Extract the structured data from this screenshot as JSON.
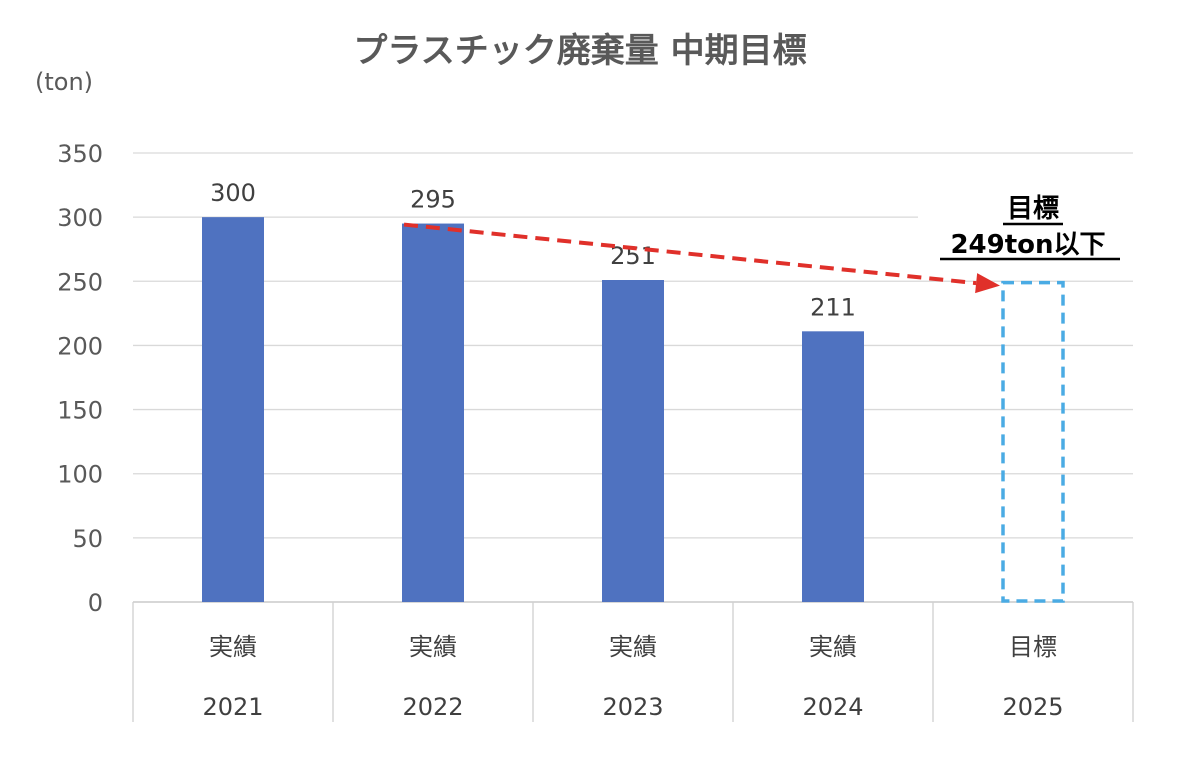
{
  "chart_data": {
    "type": "bar",
    "title": "プラスチック廃棄量 中期目標",
    "unit_label": "(ton)",
    "ylim": [
      0,
      350
    ],
    "yticks": [
      "0",
      "50",
      "100",
      "150",
      "200",
      "250",
      "300",
      "350"
    ],
    "grid": true,
    "categories": [
      {
        "type_label": "実績",
        "year": "2021"
      },
      {
        "type_label": "実績",
        "year": "2022"
      },
      {
        "type_label": "実績",
        "year": "2023"
      },
      {
        "type_label": "実績",
        "year": "2024"
      },
      {
        "type_label": "目標",
        "year": "2025"
      }
    ],
    "values": [
      300,
      295,
      251,
      211,
      249
    ],
    "data_labels": [
      "300",
      "295",
      "251",
      "211",
      ""
    ],
    "bar_color": "#4F72C0",
    "target": {
      "value": 249,
      "style": "dashed-outline",
      "color": "#4AABE4",
      "label_line1": "目標",
      "label_line2": "249ton以下"
    },
    "trend_arrow": {
      "from_category": 1,
      "to_category": 4,
      "color": "#E0302A"
    }
  }
}
